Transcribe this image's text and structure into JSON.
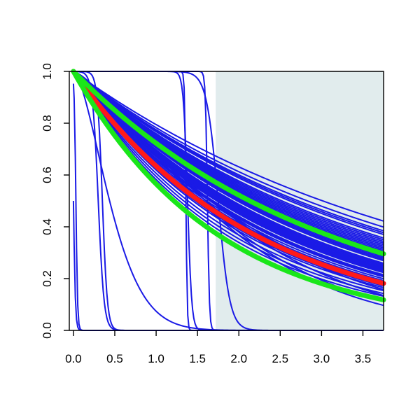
{
  "chart_data": {
    "type": "line",
    "title": "",
    "xlabel": "",
    "ylabel": "",
    "xlim": [
      -0.05,
      3.75
    ],
    "ylim": [
      0.0,
      1.0
    ],
    "grid": false,
    "legend": "none",
    "x_ticks": [
      "0.0",
      "0.5",
      "1.0",
      "1.5",
      "2.0",
      "2.5",
      "3.0",
      "3.5"
    ],
    "x_tick_values": [
      0.0,
      0.5,
      1.0,
      1.5,
      2.0,
      2.5,
      3.0,
      3.5
    ],
    "y_ticks": [
      "0.0",
      "0.2",
      "0.4",
      "0.6",
      "0.8",
      "1.0"
    ],
    "y_tick_values": [
      0.0,
      0.2,
      0.4,
      0.6,
      0.8,
      1.0
    ],
    "shaded_region": {
      "x_from": 1.72,
      "x_to": 3.75,
      "color": "#e1eced"
    },
    "colors": {
      "sample_curves": "#1a1ae6",
      "median": "#ff1a1a",
      "interval": "#1ae61a"
    },
    "samples": {
      "exponential_rates": [
        0.23,
        0.245,
        0.255,
        0.26,
        0.265,
        0.275,
        0.28,
        0.285,
        0.29,
        0.295,
        0.3,
        0.305,
        0.31,
        0.315,
        0.32,
        0.325,
        0.33,
        0.335,
        0.34,
        0.345,
        0.35,
        0.36,
        0.365,
        0.37,
        0.375,
        0.38,
        0.385,
        0.39,
        0.395,
        0.4,
        0.41,
        0.415,
        0.42,
        0.43,
        0.44,
        0.45,
        0.46,
        0.47,
        0.48,
        0.5,
        0.52,
        0.54,
        0.56
      ],
      "weibull_curves": [
        {
          "scale": 2.3,
          "shape": 1.15
        },
        {
          "scale": 2.25,
          "shape": 1.2
        },
        {
          "scale": 2.15,
          "shape": 1.25
        },
        {
          "scale": 2.05,
          "shape": 1.3
        },
        {
          "scale": 2.0,
          "shape": 1.35
        },
        {
          "scale": 0.55,
          "shape": 1.6
        }
      ],
      "logistic_drops": [
        {
          "t0": 0.0,
          "k": 0.012
        },
        {
          "t0": 0.03,
          "k": 0.01
        },
        {
          "t0": 0.3,
          "k": 0.035
        },
        {
          "t0": 0.35,
          "k": 0.03
        },
        {
          "t0": 1.38,
          "k": 0.025
        },
        {
          "t0": 1.62,
          "k": 0.012
        },
        {
          "t0": 1.75,
          "k": 0.07
        },
        {
          "t0": 1.36,
          "k": 0.008
        }
      ]
    },
    "series": [
      {
        "role": "median",
        "rate": 0.455
      },
      {
        "role": "upper",
        "rate": 0.325
      },
      {
        "role": "lower",
        "rate": 0.57
      }
    ]
  }
}
